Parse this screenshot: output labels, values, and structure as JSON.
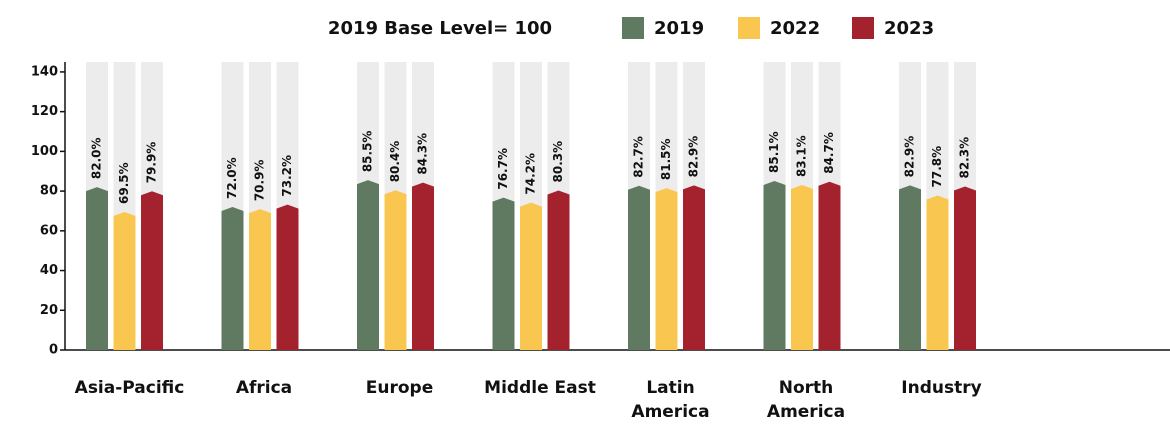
{
  "chart_data": {
    "type": "bar",
    "title": "2019 Base Level= 100",
    "categories": [
      "Asia-Pacific",
      "Africa",
      "Europe",
      "Middle East",
      "Latin America",
      "North America",
      "Industry"
    ],
    "series": [
      {
        "name": "2019",
        "color": "#5f7a60",
        "values": [
          82.0,
          72.0,
          85.5,
          76.7,
          82.7,
          85.1,
          82.9
        ],
        "value_labels": [
          "82.0%",
          "72.0%",
          "85.5%",
          "76.7%",
          "82.7%",
          "85.1%",
          "82.9%"
        ]
      },
      {
        "name": "2022",
        "color": "#f9c74f",
        "values": [
          69.5,
          70.9,
          80.4,
          74.2,
          81.5,
          83.1,
          77.8
        ],
        "value_labels": [
          "69.5%",
          "70.9%",
          "80.4%",
          "74.2%",
          "81.5%",
          "83.1%",
          "77.8%"
        ]
      },
      {
        "name": "2023",
        "color": "#a4222d",
        "values": [
          79.9,
          73.2,
          84.3,
          80.3,
          82.9,
          84.7,
          82.3
        ],
        "value_labels": [
          "79.9%",
          "73.2%",
          "84.3%",
          "80.3%",
          "82.9%",
          "84.7%",
          "82.3%"
        ]
      }
    ],
    "ylim": [
      0,
      145
    ],
    "yticks": [
      0,
      20,
      40,
      60,
      80,
      100,
      120,
      140
    ]
  }
}
